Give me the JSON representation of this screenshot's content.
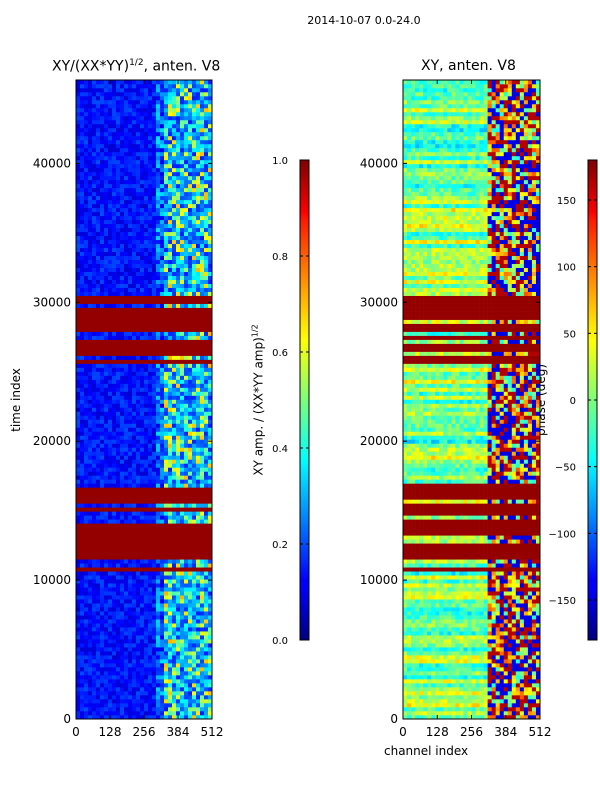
{
  "suptitle": "2014-10-07 0.0-24.0",
  "chart_data": [
    {
      "type": "heatmap",
      "title_text": "XY/(XX*YY)",
      "title_superscript": "1/2",
      "title_suffix": ", anten. V8",
      "xlabel": "",
      "ylabel": "time index",
      "xlim": [
        0,
        512
      ],
      "ylim": [
        0,
        46000
      ],
      "xticks": [
        0,
        128,
        256,
        384,
        512
      ],
      "yticks": [
        0,
        10000,
        20000,
        30000,
        40000
      ],
      "colorbar": {
        "label_text": "XY amp. / (XX*YY amp)",
        "label_superscript": "1/2",
        "range": [
          0.0,
          1.0
        ],
        "ticks": [
          "0.0",
          "0.2",
          "0.4",
          "0.6",
          "0.8",
          "1.0"
        ],
        "colormap": "jet"
      },
      "saturated_time_bands": [
        [
          10500,
          11000
        ],
        [
          11500,
          13500
        ],
        [
          13500,
          14800
        ],
        [
          14800,
          17000
        ],
        [
          25500,
          27500
        ],
        [
          28000,
          30500
        ]
      ]
    },
    {
      "type": "heatmap",
      "title": "XY, anten. V8",
      "xlabel": "channel index",
      "ylabel": "",
      "xlim": [
        0,
        512
      ],
      "ylim": [
        0,
        46000
      ],
      "xticks": [
        0,
        128,
        256,
        384,
        512
      ],
      "yticks": [
        0,
        10000,
        20000,
        30000,
        40000
      ],
      "colorbar": {
        "label": "phase (deg)",
        "range": [
          -180,
          180
        ],
        "ticks": [
          "−150",
          "−100",
          "−50",
          "0",
          "50",
          "100",
          "150"
        ],
        "tick_values": [
          -150,
          -100,
          -50,
          0,
          50,
          100,
          150
        ],
        "colormap": "jet"
      },
      "saturated_time_bands": [
        [
          10500,
          11000
        ],
        [
          11500,
          13500
        ],
        [
          13500,
          14800
        ],
        [
          14800,
          17000
        ],
        [
          25500,
          27500
        ],
        [
          28000,
          30500
        ]
      ]
    }
  ]
}
